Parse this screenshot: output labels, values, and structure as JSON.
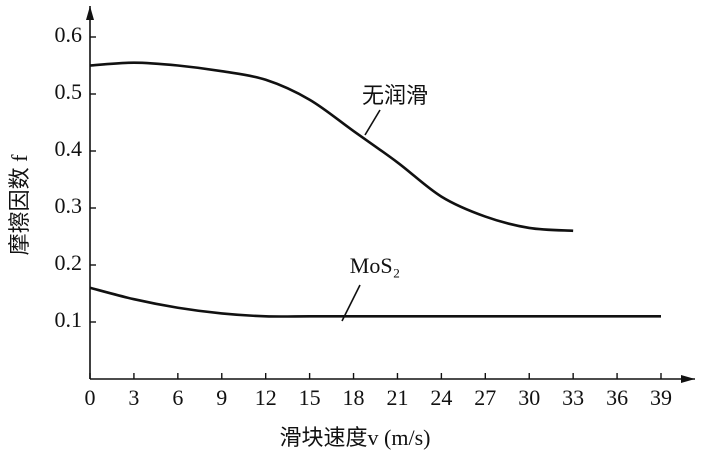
{
  "chart_data": {
    "type": "line",
    "x_label": "滑块速度v (m/s)",
    "y_label": "摩擦因数 f",
    "x": [
      0,
      3,
      6,
      9,
      12,
      15,
      18,
      21,
      24,
      27,
      30,
      33,
      36,
      39
    ],
    "series": [
      {
        "name": "无润滑",
        "color": "#111111",
        "values": [
          0.55,
          0.555,
          0.55,
          0.54,
          0.525,
          0.49,
          0.435,
          0.38,
          0.32,
          0.285,
          0.265,
          0.26,
          null,
          null
        ]
      },
      {
        "name": "MoS₂",
        "color": "#111111",
        "values": [
          0.16,
          0.14,
          0.125,
          0.115,
          0.11,
          0.11,
          0.11,
          0.11,
          0.11,
          0.11,
          0.11,
          0.11,
          0.11,
          0.11
        ]
      }
    ],
    "xlim": [
      0,
      41.5
    ],
    "ylim": [
      0,
      0.65
    ],
    "xticks": [
      0,
      3,
      6,
      9,
      12,
      15,
      18,
      21,
      24,
      27,
      30,
      33,
      36,
      39
    ],
    "yticks": [
      0.1,
      0.2,
      0.3,
      0.4,
      0.5,
      0.6
    ]
  }
}
